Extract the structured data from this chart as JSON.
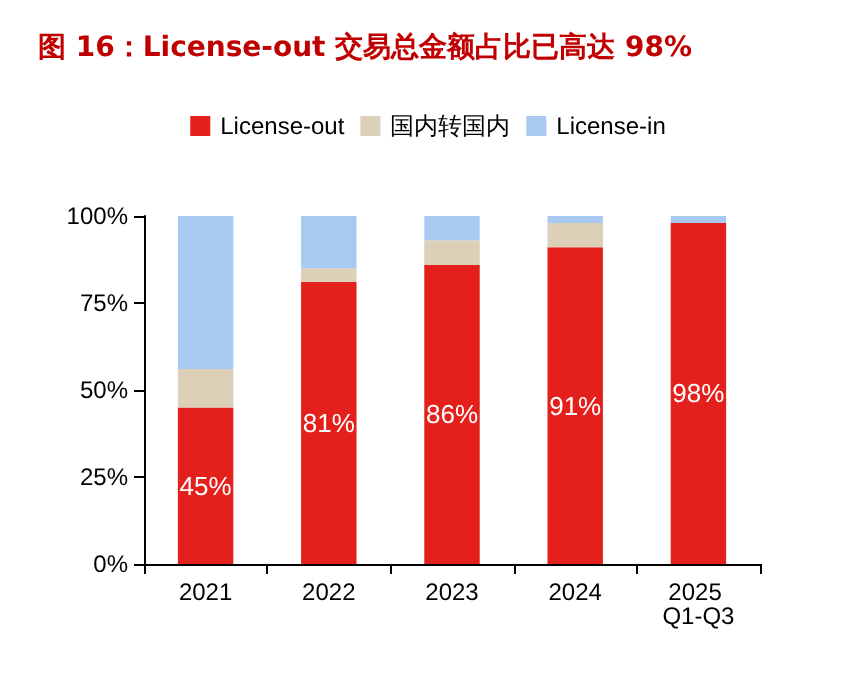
{
  "chart_data": {
    "type": "bar",
    "title": "图 16：License-out 交易总金额占比已高达 98%",
    "stacked": true,
    "legend": "top",
    "grid": false,
    "categories": [
      "2021",
      "2022",
      "2023",
      "2024",
      "2025 Q1-Q3"
    ],
    "series": [
      {
        "name": "License-out",
        "color": "#e3201b",
        "values": [
          45,
          81,
          86,
          91,
          98
        ],
        "value_labels": [
          "45%",
          "81%",
          "86%",
          "91%",
          "98%"
        ]
      },
      {
        "name": "国内转国内",
        "color": "#ddd0b8",
        "values": [
          11,
          4,
          7,
          7,
          null
        ]
      },
      {
        "name": "License-in",
        "color": "#a8c9f2",
        "values": [
          44,
          15,
          7,
          2,
          2
        ]
      }
    ],
    "ylim": [
      0,
      100
    ],
    "yticks": [
      {
        "value": 0,
        "label": "0%"
      },
      {
        "value": 25,
        "label": "25%"
      },
      {
        "value": 50,
        "label": "50%"
      },
      {
        "value": 75,
        "label": "75%"
      },
      {
        "value": 100,
        "label": "100%"
      }
    ]
  }
}
